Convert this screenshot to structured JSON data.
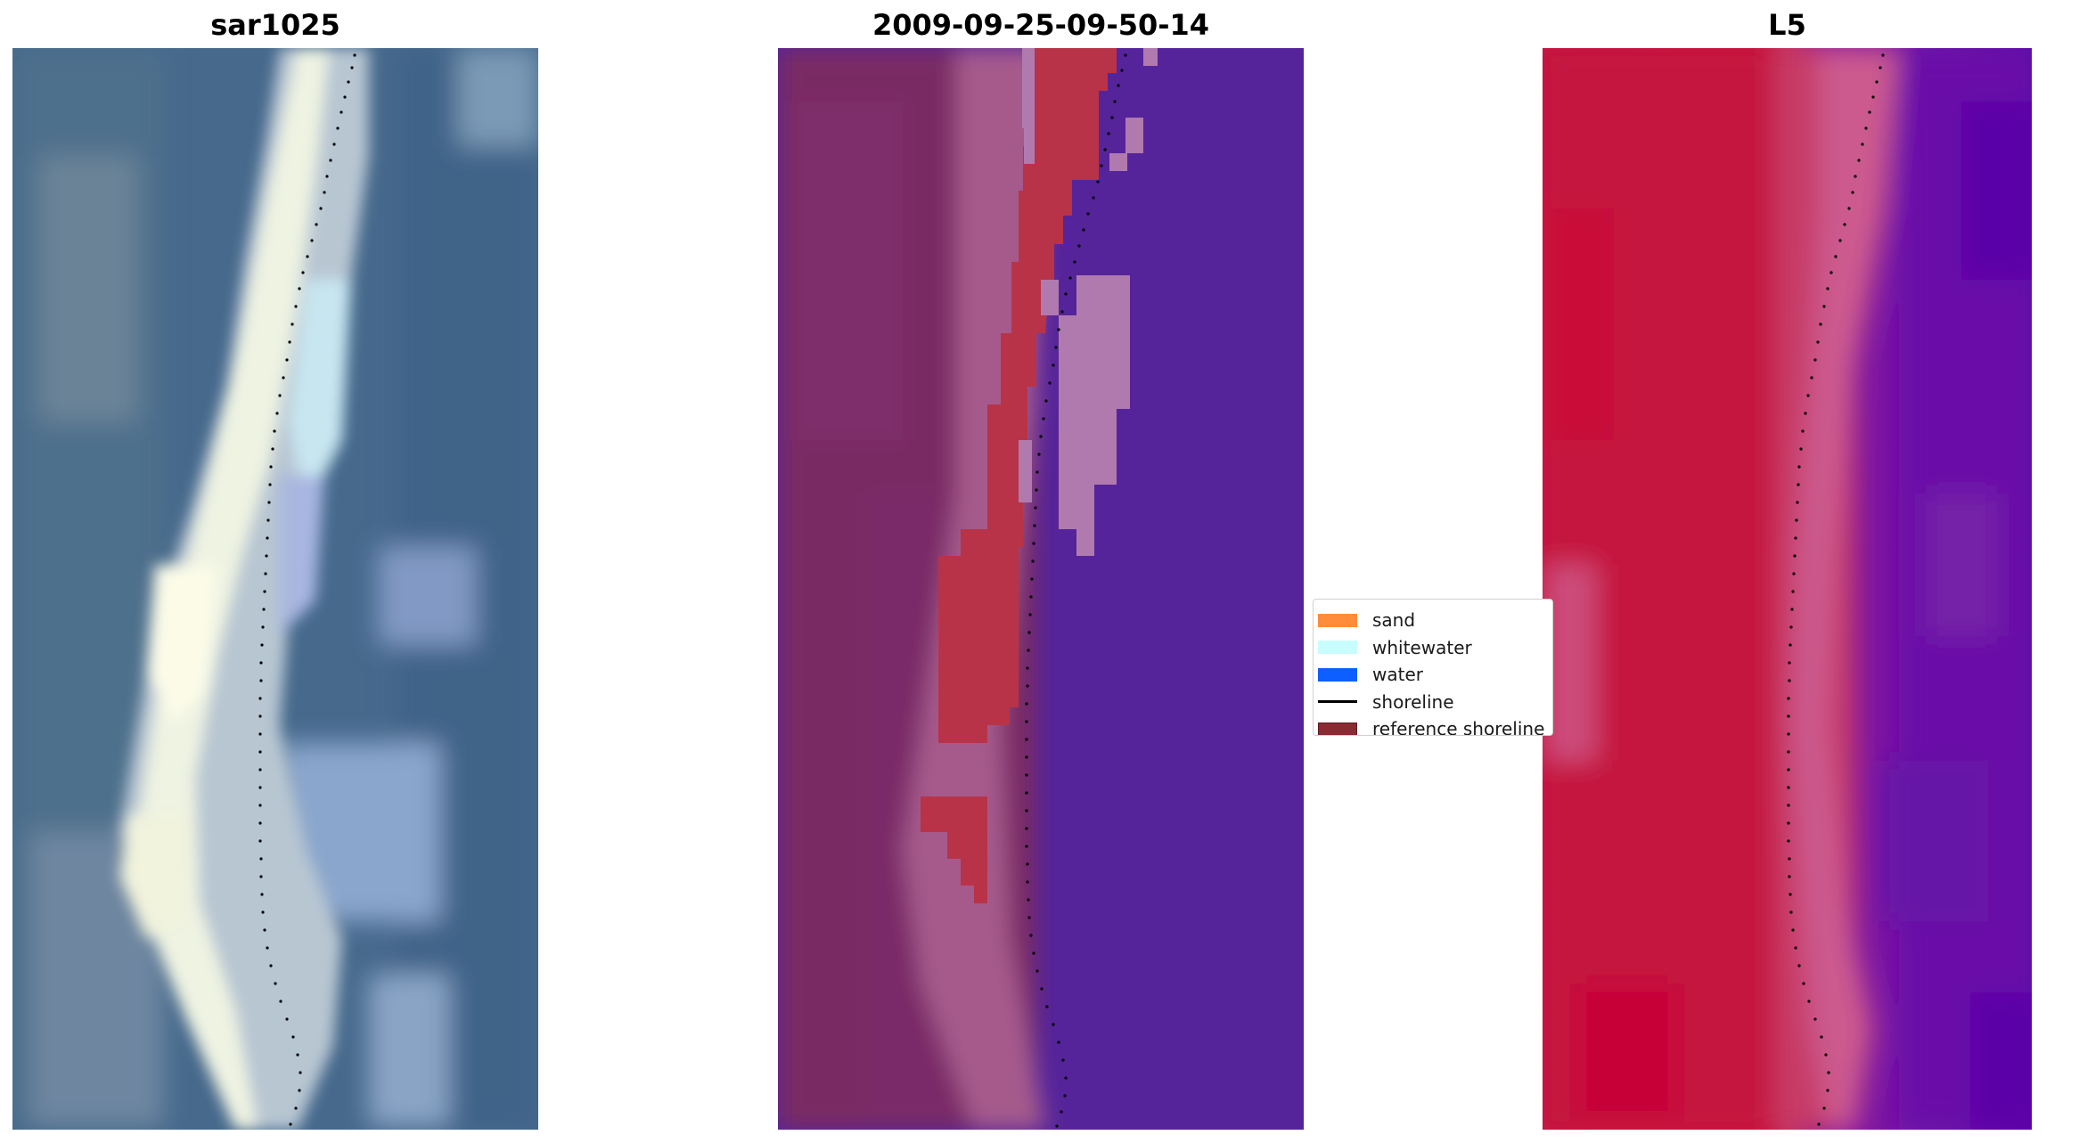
{
  "figure": {
    "panels": [
      {
        "id": "rgb",
        "title": "sar1025"
      },
      {
        "id": "classified",
        "title": "2009-09-25-09-50-14"
      },
      {
        "id": "index",
        "title": "L5"
      }
    ],
    "legend": {
      "placement": "center-right of middle panel",
      "items": [
        {
          "label": "sand",
          "color": "#ff8c3a",
          "kind": "patch"
        },
        {
          "label": "whitewater",
          "color": "#c8fdfd",
          "kind": "patch"
        },
        {
          "label": "water",
          "color": "#0d5fff",
          "kind": "patch"
        },
        {
          "label": "shoreline",
          "color": "#000000",
          "kind": "line"
        },
        {
          "label": "reference shoreline",
          "color": "#8b2a33",
          "kind": "patch"
        }
      ]
    },
    "colors": {
      "rgb_water": "#46698c",
      "rgb_whitewater": "#eef3e2",
      "rgb_surf": "#9fb6d6",
      "class_land": "#7a2a64",
      "class_land_light": "#a65a8c",
      "class_sand": "#b83347",
      "class_water": "#55249a",
      "class_foam": "#b07aae",
      "index_land": "#c5143f",
      "index_land_light": "#cc4c7a",
      "index_water": "#6b10a8",
      "index_water_dark": "#5a05a8",
      "shoreline_dots": "#000000"
    }
  }
}
